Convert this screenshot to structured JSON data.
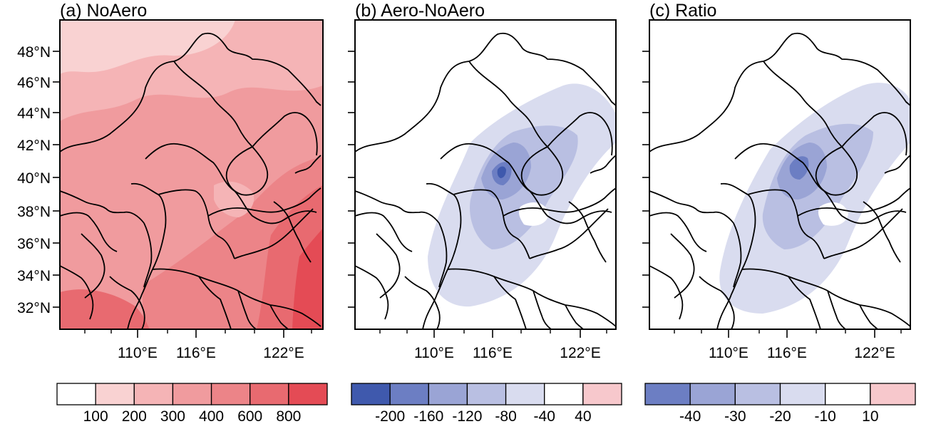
{
  "panels": [
    {
      "key": "a",
      "title": "(a) NoAero",
      "colorbar": {
        "colors": [
          "#ffffff",
          "#f9d2d2",
          "#f5b4b6",
          "#f09b9e",
          "#ec8488",
          "#e86a70",
          "#e44b55"
        ],
        "labels": [
          "100",
          "200",
          "300",
          "400",
          "600",
          "800"
        ]
      }
    },
    {
      "key": "b",
      "title": "(b) Aero-NoAero",
      "colorbar": {
        "colors": [
          "#3f59ad",
          "#6c7ec3",
          "#9aa4d5",
          "#b9bfe2",
          "#d9dcef",
          "#ffffff",
          "#f7c8cc"
        ],
        "labels": [
          "-200",
          "-160",
          "-120",
          "-80",
          "-40",
          "40"
        ]
      }
    },
    {
      "key": "c",
      "title": "(c) Ratio",
      "colorbar": {
        "colors": [
          "#6c7ec3",
          "#9aa4d5",
          "#b9bfe2",
          "#d9dcef",
          "#ffffff",
          "#f7c8cc"
        ],
        "labels": [
          "-40",
          "-30",
          "-20",
          "-10",
          "10"
        ]
      }
    }
  ],
  "axes": {
    "lat_ticks": [
      "48°N",
      "46°N",
      "44°N",
      "42°N",
      "40°N",
      "38°N",
      "36°N",
      "34°N",
      "32°N"
    ],
    "lon_ticks": [
      "110°E",
      "116°E",
      "122°E"
    ]
  }
}
